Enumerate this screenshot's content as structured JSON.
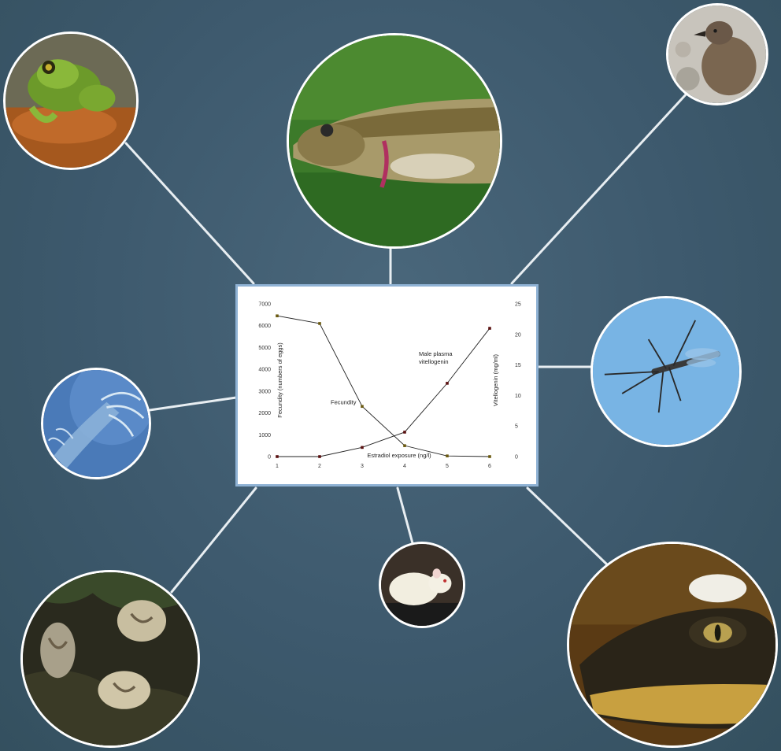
{
  "chart_data": {
    "type": "line",
    "x": [
      1,
      2,
      3,
      4,
      5,
      6
    ],
    "xlabel": "Estradiol exposure (ng/l)",
    "ylabel_left": "Fecundity (numbers of eggs)",
    "ylabel_right": "Vitellogenin (mg/ml)",
    "ylim_left": [
      0,
      7000
    ],
    "ylim_right": [
      0,
      25
    ],
    "yticks_left": [
      "0",
      "1000",
      "2000",
      "3000",
      "4000",
      "5000",
      "6000",
      "7000"
    ],
    "yticks_right": [
      "0",
      "5",
      "10",
      "15",
      "20",
      "25"
    ],
    "xticks": [
      "1",
      "2",
      "3",
      "4",
      "5",
      "6"
    ],
    "series": [
      {
        "name": "Fecundity",
        "axis": "left",
        "values": [
          6450,
          6100,
          2300,
          500,
          30,
          0
        ]
      },
      {
        "name": "Male plasma vitellogenin",
        "axis": "right",
        "values": [
          0,
          0,
          1.5,
          4.0,
          12.0,
          21.0
        ]
      }
    ],
    "annotations": [
      {
        "text": "Fecundity",
        "near_series": "Fecundity"
      },
      {
        "text": "Male plasma",
        "line2": "vitellogenin",
        "near_series": "Male plasma vitellogenin"
      }
    ],
    "grid": false,
    "legend": "none"
  },
  "photos": [
    {
      "subject": "frog",
      "icon": "frog-photo"
    },
    {
      "subject": "trout",
      "icon": "fish-photo"
    },
    {
      "subject": "skua bird",
      "icon": "bird-photo"
    },
    {
      "subject": "copepod",
      "icon": "crustacean-photo"
    },
    {
      "subject": "midge",
      "icon": "insect-photo"
    },
    {
      "subject": "mussels",
      "icon": "mollusc-photo"
    },
    {
      "subject": "rat",
      "icon": "rat-photo"
    },
    {
      "subject": "alligator",
      "icon": "alligator-photo"
    }
  ],
  "colors": {
    "background": "#3e5a6e",
    "connector": "#e8eef2",
    "panel_border": "#8fb2d4",
    "line": "#222222",
    "marker_fecundity": "#6b5a10",
    "marker_vtg": "#5a1010"
  }
}
